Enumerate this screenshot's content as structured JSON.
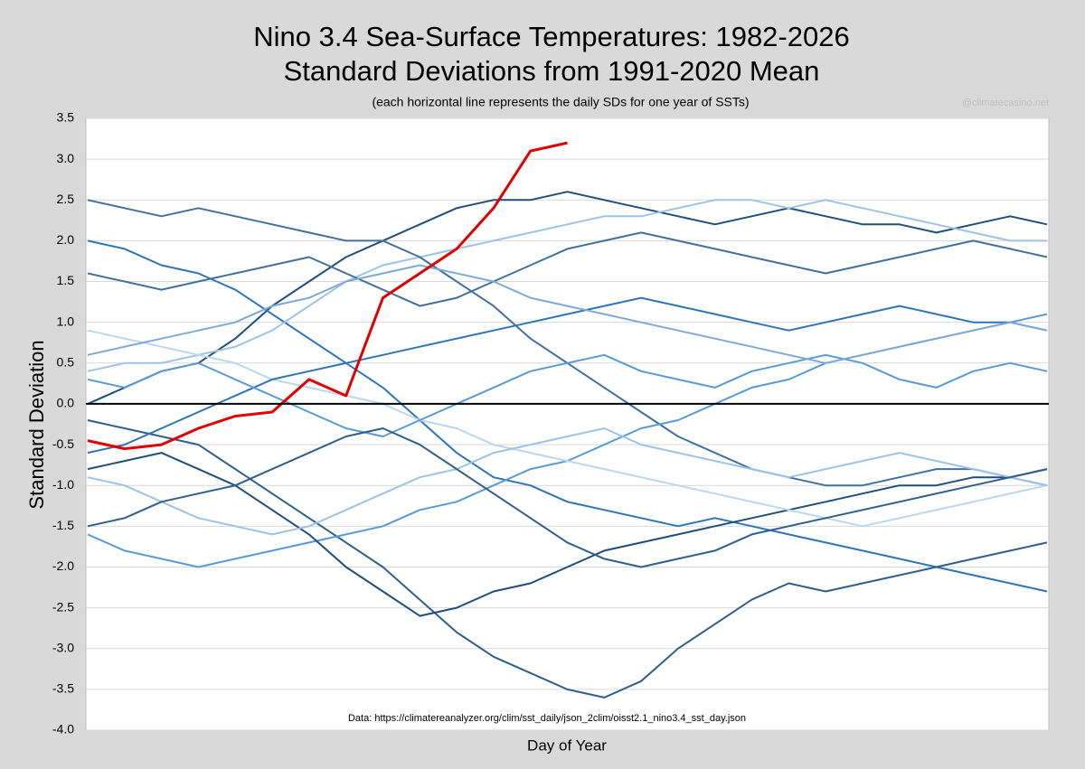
{
  "chart_data": {
    "type": "line",
    "title": "Nino 3.4 Sea-Surface Temperatures: 1982-2026",
    "subtitle": "Standard Deviations from 1991-2020 Mean",
    "note": "(each horizontal line represents the daily SDs for one year of SSTs)",
    "watermark": "@climatecasino.net",
    "source": "Data: https://climatereanalyzer.org/clim/sst_daily/json_2clim/oisst2.1_nino3.4_sst_day.json",
    "ylabel": "Standard Deviation",
    "xlabel": "Day of Year",
    "grid": true,
    "zero_line": true,
    "xlim": [
      1,
      365
    ],
    "ylim": [
      -4,
      3.5
    ],
    "yticks": [
      3.5,
      {
        "value": 3,
        "label": "3.0"
      },
      2.5,
      {
        "value": 2,
        "label": "2.0"
      },
      1.5,
      {
        "value": 1,
        "label": "1.0"
      },
      0.5,
      {
        "value": 0,
        "label": "0.0"
      },
      -0.5,
      {
        "value": -1,
        "label": "-1.0"
      },
      -1.5,
      {
        "value": -2,
        "label": "-2.0"
      },
      -2.5,
      {
        "value": -3,
        "label": "-3.0"
      },
      -3.5,
      {
        "value": -4,
        "label": "-4.0"
      }
    ],
    "x": [
      1,
      15,
      29,
      43,
      57,
      71,
      85,
      99,
      113,
      127,
      141,
      155,
      169,
      183,
      197,
      211,
      225,
      239,
      253,
      267,
      281,
      295,
      309,
      323,
      337,
      351,
      365
    ],
    "series": [
      {
        "color": "#1f4e79",
        "values": [
          0.0,
          0.2,
          0.4,
          0.5,
          0.8,
          1.2,
          1.5,
          1.8,
          2.0,
          2.2,
          2.4,
          2.5,
          2.5,
          2.6,
          2.5,
          2.4,
          2.3,
          2.2,
          2.3,
          2.4,
          2.3,
          2.2,
          2.2,
          2.1,
          2.2,
          2.3,
          2.2
        ]
      },
      {
        "color": "#2e75b6",
        "values": [
          2.0,
          1.9,
          1.7,
          1.6,
          1.4,
          1.1,
          0.8,
          0.5,
          0.2,
          -0.2,
          -0.6,
          -0.9,
          -1.0,
          -1.2,
          -1.3,
          -1.4,
          -1.5,
          -1.4,
          -1.5,
          -1.6,
          -1.7,
          -1.8,
          -1.9,
          -2.0,
          -2.1,
          -2.2,
          -2.3
        ]
      },
      {
        "color": "#9dc3e6",
        "values": [
          0.4,
          0.5,
          0.5,
          0.6,
          0.7,
          0.9,
          1.2,
          1.5,
          1.7,
          1.8,
          1.9,
          2.0,
          2.1,
          2.2,
          2.3,
          2.3,
          2.4,
          2.5,
          2.5,
          2.4,
          2.5,
          2.4,
          2.3,
          2.2,
          2.1,
          2.0,
          2.0
        ]
      },
      {
        "color": "#41719c",
        "values": [
          2.5,
          2.4,
          2.3,
          2.4,
          2.3,
          2.2,
          2.1,
          2.0,
          2.0,
          1.8,
          1.5,
          1.2,
          0.8,
          0.5,
          0.2,
          -0.1,
          -0.4,
          -0.6,
          -0.8,
          -0.9,
          -1.0,
          -1.0,
          -0.9,
          -0.8,
          -0.8,
          -0.9,
          -1.0
        ]
      },
      {
        "color": "#2f5f8a",
        "values": [
          -0.2,
          -0.3,
          -0.4,
          -0.5,
          -0.8,
          -1.1,
          -1.4,
          -1.7,
          -2.0,
          -2.4,
          -2.8,
          -3.1,
          -3.3,
          -3.5,
          -3.6,
          -3.4,
          -3.0,
          -2.7,
          -2.4,
          -2.2,
          -2.3,
          -2.2,
          -2.1,
          -2.0,
          -1.9,
          -1.8,
          -1.7
        ]
      },
      {
        "color": "#5b9bd5",
        "values": [
          -1.6,
          -1.8,
          -1.9,
          -2.0,
          -1.9,
          -1.8,
          -1.7,
          -1.6,
          -1.5,
          -1.3,
          -1.2,
          -1.0,
          -0.8,
          -0.7,
          -0.5,
          -0.3,
          -0.2,
          0.0,
          0.2,
          0.3,
          0.5,
          0.6,
          0.7,
          0.8,
          0.9,
          1.0,
          1.1
        ]
      },
      {
        "color": "#1f4e79",
        "values": [
          -0.8,
          -0.7,
          -0.6,
          -0.8,
          -1.0,
          -1.3,
          -1.6,
          -2.0,
          -2.3,
          -2.6,
          -2.5,
          -2.3,
          -2.2,
          -2.0,
          -1.8,
          -1.7,
          -1.6,
          -1.5,
          -1.4,
          -1.3,
          -1.2,
          -1.1,
          -1.0,
          -1.0,
          -0.9,
          -0.9,
          -0.8
        ]
      },
      {
        "color": "#bdd7ee",
        "values": [
          0.9,
          0.8,
          0.7,
          0.6,
          0.5,
          0.3,
          0.2,
          0.1,
          0.0,
          -0.2,
          -0.3,
          -0.5,
          -0.6,
          -0.7,
          -0.8,
          -0.9,
          -1.0,
          -1.1,
          -1.2,
          -1.3,
          -1.4,
          -1.5,
          -1.4,
          -1.3,
          -1.2,
          -1.1,
          -1.0
        ]
      },
      {
        "color": "#2e75b6",
        "values": [
          -0.6,
          -0.5,
          -0.3,
          -0.1,
          0.1,
          0.3,
          0.4,
          0.5,
          0.6,
          0.7,
          0.8,
          0.9,
          1.0,
          1.1,
          1.2,
          1.3,
          1.2,
          1.1,
          1.0,
          0.9,
          1.0,
          1.1,
          1.2,
          1.1,
          1.0,
          1.0,
          0.9
        ]
      },
      {
        "color": "#41719c",
        "values": [
          1.6,
          1.5,
          1.4,
          1.5,
          1.6,
          1.7,
          1.8,
          1.6,
          1.4,
          1.2,
          1.3,
          1.5,
          1.7,
          1.9,
          2.0,
          2.1,
          2.0,
          1.9,
          1.8,
          1.7,
          1.6,
          1.7,
          1.8,
          1.9,
          2.0,
          1.9,
          1.8
        ]
      },
      {
        "color": "#9dc3e6",
        "values": [
          -0.9,
          -1.0,
          -1.2,
          -1.4,
          -1.5,
          -1.6,
          -1.5,
          -1.3,
          -1.1,
          -0.9,
          -0.8,
          -0.6,
          -0.5,
          -0.4,
          -0.3,
          -0.5,
          -0.6,
          -0.7,
          -0.8,
          -0.9,
          -0.8,
          -0.7,
          -0.6,
          -0.7,
          -0.8,
          -0.9,
          -1.0
        ]
      },
      {
        "color": "#5b9bd5",
        "values": [
          0.3,
          0.2,
          0.4,
          0.5,
          0.3,
          0.1,
          -0.1,
          -0.3,
          -0.4,
          -0.2,
          0.0,
          0.2,
          0.4,
          0.5,
          0.6,
          0.4,
          0.3,
          0.2,
          0.4,
          0.5,
          0.6,
          0.5,
          0.3,
          0.2,
          0.4,
          0.5,
          0.4
        ]
      },
      {
        "color": "#2f5f8a",
        "values": [
          -1.5,
          -1.4,
          -1.2,
          -1.1,
          -1.0,
          -0.8,
          -0.6,
          -0.4,
          -0.3,
          -0.5,
          -0.8,
          -1.1,
          -1.4,
          -1.7,
          -1.9,
          -2.0,
          -1.9,
          -1.8,
          -1.6,
          -1.5,
          -1.4,
          -1.3,
          -1.2,
          -1.1,
          -1.0,
          -0.9,
          -0.8
        ]
      },
      {
        "color": "#7fa9d6",
        "values": [
          0.6,
          0.7,
          0.8,
          0.9,
          1.0,
          1.2,
          1.3,
          1.5,
          1.6,
          1.7,
          1.6,
          1.5,
          1.3,
          1.2,
          1.1,
          1.0,
          0.9,
          0.8,
          0.7,
          0.6,
          0.5,
          0.6,
          0.7,
          0.8,
          0.9,
          1.0,
          0.9
        ]
      },
      {
        "color": "#e00000",
        "values": [
          -0.45,
          -0.55,
          -0.5,
          -0.3,
          -0.15,
          -0.1,
          0.3,
          0.1,
          1.3,
          1.6,
          1.9,
          2.4,
          3.1,
          3.2,
          null,
          null,
          null,
          null,
          null,
          null,
          null,
          null,
          null,
          null,
          null,
          null,
          null
        ]
      }
    ]
  }
}
